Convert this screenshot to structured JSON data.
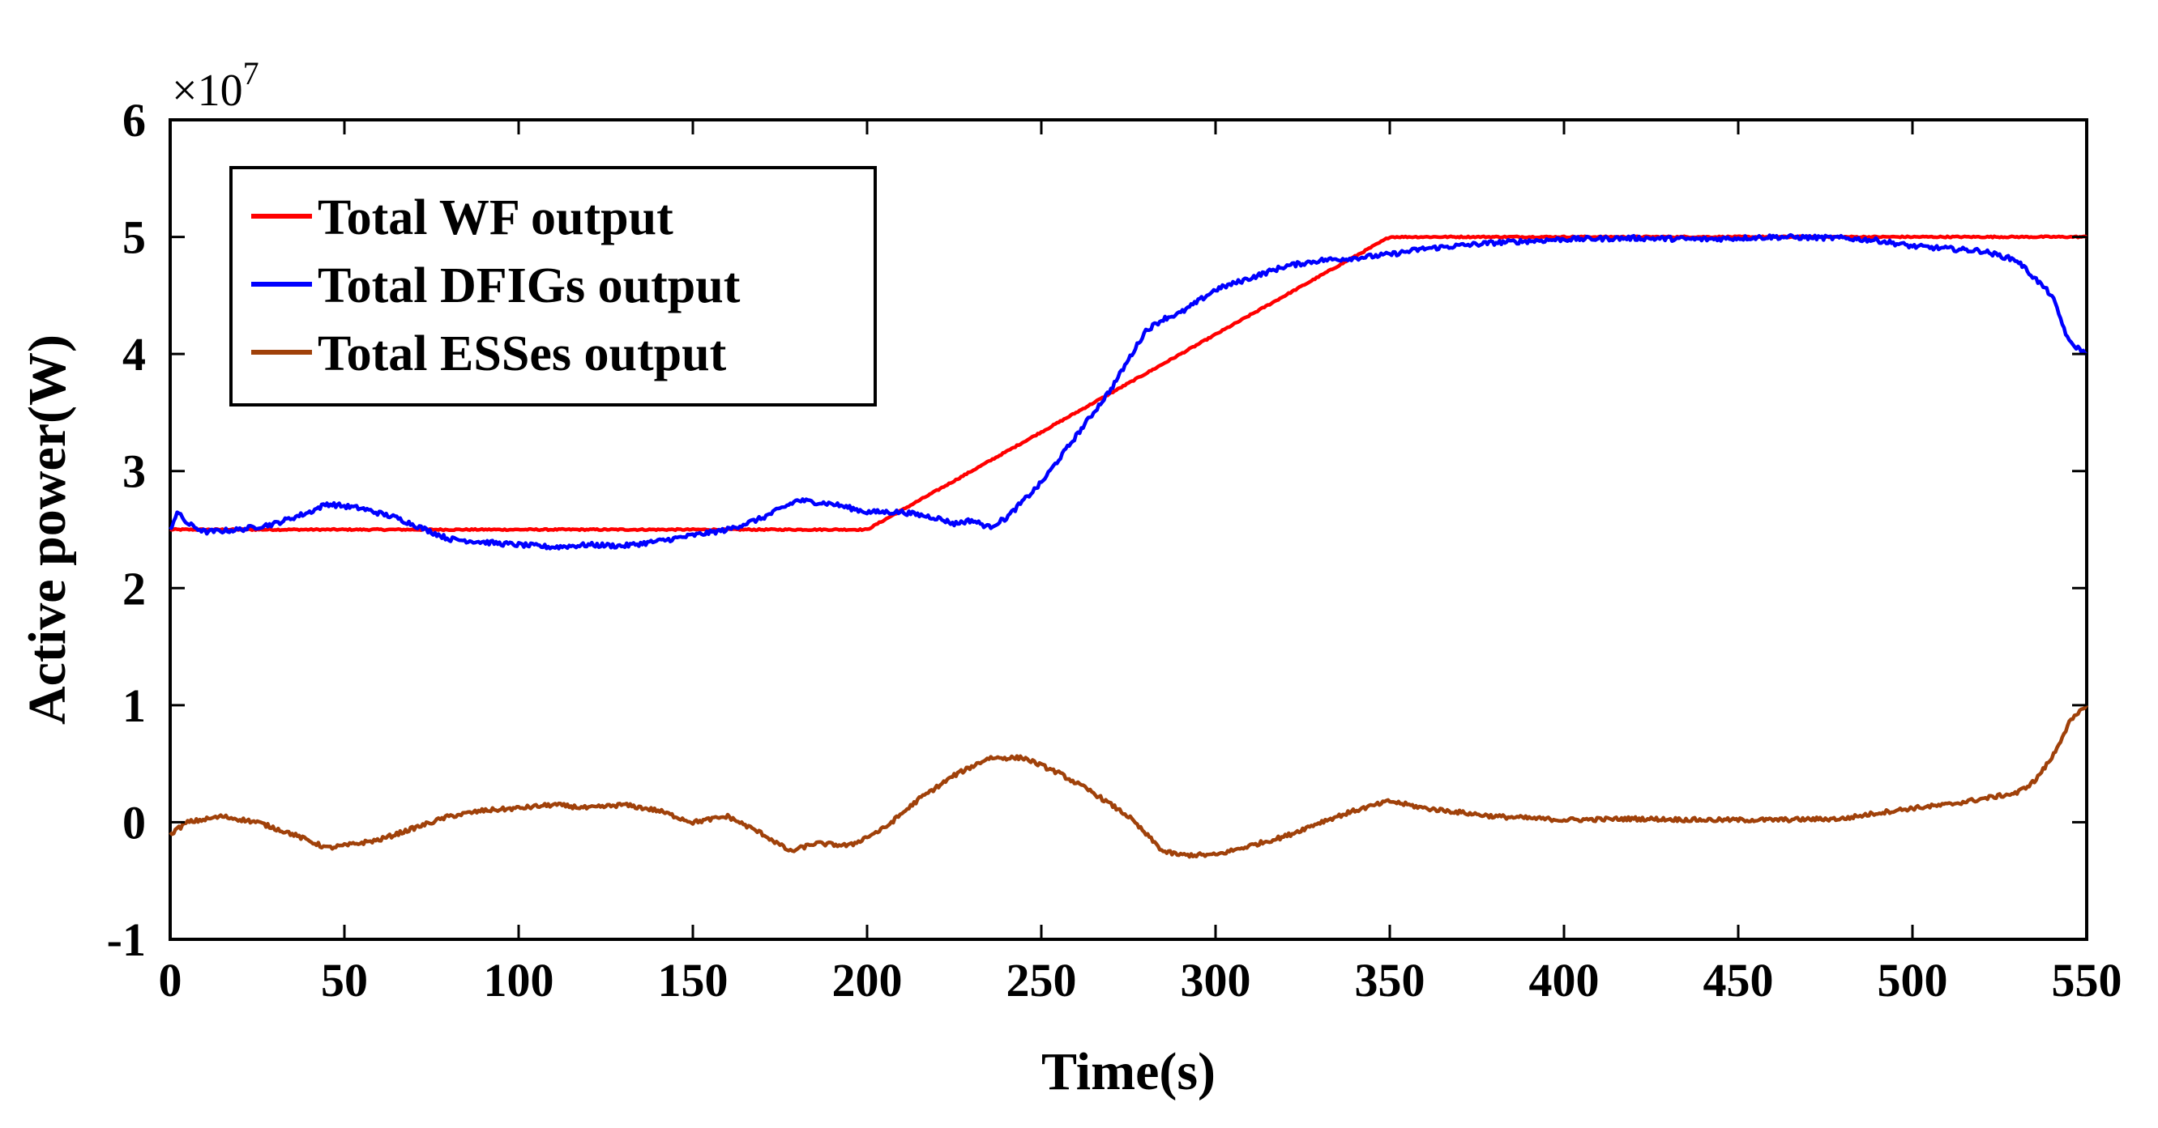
{
  "chart_data": {
    "type": "line",
    "xlabel": "Time(s)",
    "ylabel": "Active power(W)",
    "y_exponent_label": "×10",
    "y_exponent_power": "7",
    "xlim": [
      0,
      550
    ],
    "ylim": [
      -1,
      6
    ],
    "xticks": [
      0,
      50,
      100,
      150,
      200,
      250,
      300,
      350,
      400,
      450,
      500,
      550
    ],
    "xtick_labels": [
      "0",
      "50",
      "100",
      "150",
      "200",
      "250",
      "300",
      "350",
      "400",
      "450",
      "500",
      "550"
    ],
    "yticks": [
      -1,
      0,
      1,
      2,
      3,
      4,
      5,
      6
    ],
    "ytick_labels": [
      "-1",
      "0",
      "1",
      "2",
      "3",
      "4",
      "5",
      "6"
    ],
    "legend_position": "top-left",
    "series": [
      {
        "name": "Total WF output",
        "color": "#ff0000",
        "x": [
          0,
          200,
          350,
          550
        ],
        "y": [
          2.5,
          2.5,
          5.0,
          5.0
        ]
      },
      {
        "name": "Total DFIGs output",
        "color": "#0000ff",
        "x": [
          0,
          2,
          5,
          10,
          20,
          30,
          40,
          45,
          55,
          65,
          80,
          95,
          110,
          120,
          130,
          140,
          150,
          160,
          170,
          180,
          190,
          200,
          210,
          220,
          225,
          230,
          235,
          240,
          250,
          260,
          270,
          280,
          285,
          290,
          300,
          310,
          320,
          330,
          340,
          350,
          360,
          380,
          400,
          420,
          440,
          460,
          480,
          490,
          500,
          510,
          520,
          530,
          535,
          540,
          545,
          550
        ],
        "y": [
          2.5,
          2.65,
          2.55,
          2.48,
          2.5,
          2.55,
          2.65,
          2.72,
          2.68,
          2.6,
          2.42,
          2.38,
          2.35,
          2.37,
          2.36,
          2.4,
          2.45,
          2.5,
          2.6,
          2.75,
          2.72,
          2.65,
          2.65,
          2.6,
          2.55,
          2.58,
          2.52,
          2.6,
          2.9,
          3.3,
          3.7,
          4.2,
          4.3,
          4.35,
          4.55,
          4.65,
          4.75,
          4.8,
          4.82,
          4.85,
          4.9,
          4.95,
          4.98,
          4.99,
          4.98,
          5.0,
          4.99,
          4.97,
          4.92,
          4.9,
          4.88,
          4.8,
          4.65,
          4.5,
          4.1,
          4.0
        ]
      },
      {
        "name": "Total ESSes output",
        "color": "#a0410a",
        "x": [
          0,
          5,
          15,
          25,
          35,
          45,
          50,
          60,
          70,
          80,
          90,
          100,
          110,
          120,
          130,
          140,
          150,
          160,
          170,
          178,
          185,
          195,
          205,
          215,
          225,
          235,
          245,
          255,
          265,
          275,
          285,
          290,
          300,
          310,
          320,
          330,
          340,
          350,
          360,
          380,
          400,
          420,
          440,
          460,
          480,
          490,
          500,
          510,
          520,
          530,
          535,
          540,
          545,
          550
        ],
        "y": [
          -0.1,
          0.0,
          0.05,
          0.0,
          -0.1,
          -0.22,
          -0.2,
          -0.15,
          -0.05,
          0.05,
          0.1,
          0.12,
          0.15,
          0.12,
          0.15,
          0.1,
          0.0,
          0.05,
          -0.1,
          -0.25,
          -0.18,
          -0.2,
          -0.05,
          0.2,
          0.4,
          0.55,
          0.55,
          0.42,
          0.25,
          0.05,
          -0.25,
          -0.28,
          -0.28,
          -0.2,
          -0.12,
          0.0,
          0.1,
          0.18,
          0.12,
          0.05,
          0.02,
          0.03,
          0.02,
          0.02,
          0.03,
          0.08,
          0.12,
          0.15,
          0.2,
          0.25,
          0.35,
          0.55,
          0.85,
          1.0
        ]
      }
    ]
  }
}
